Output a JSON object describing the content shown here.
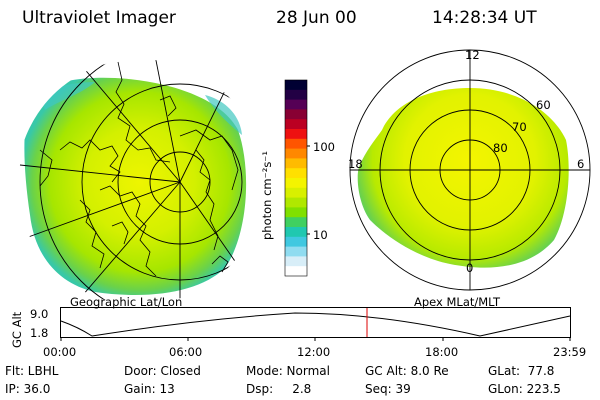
{
  "header": {
    "title": "Ultraviolet Imager",
    "date": "28 Jun 00",
    "time": "14:28:34 UT"
  },
  "left_panel": {
    "caption": "Geographic Lat/Lon"
  },
  "right_panel": {
    "caption": "Apex MLat/MLT",
    "mlt_labels": {
      "top": "12",
      "left": "18",
      "right": "6",
      "bottom": "0"
    },
    "lat_labels": [
      "60",
      "70",
      "80"
    ]
  },
  "colorbar": {
    "unit_label": "photon cm⁻²s⁻¹",
    "tick_100": "100",
    "tick_10": "10",
    "colors": [
      "#000033",
      "#220044",
      "#550055",
      "#880033",
      "#bb0022",
      "#ee1111",
      "#ff5500",
      "#ff8800",
      "#ffbb00",
      "#ffe000",
      "#f4f400",
      "#d8f000",
      "#b0e800",
      "#80e000",
      "#40d060",
      "#20c8b0",
      "#40c8e0",
      "#90dcf0",
      "#d8eef8",
      "#ffffff"
    ]
  },
  "timeline": {
    "y_label": "GC Alt",
    "y_max": "9.0",
    "y_min": "1.8",
    "x_ticks": [
      "00:00",
      "06:00",
      "12:00",
      "18:00",
      "23:59"
    ],
    "marker_color": "#dd0000"
  },
  "info": {
    "flt": "Flt: LBHL",
    "ip": "IP: 36.0",
    "door": "Door: Closed",
    "gain": "Gain: 13",
    "mode": "Mode: Normal",
    "dsp": "Dsp:     2.8",
    "gcalt": "GC Alt: 8.0 Re",
    "seq": "Seq: 39",
    "glat": "GLat:  77.8",
    "glon": "GLon: 223.5"
  }
}
